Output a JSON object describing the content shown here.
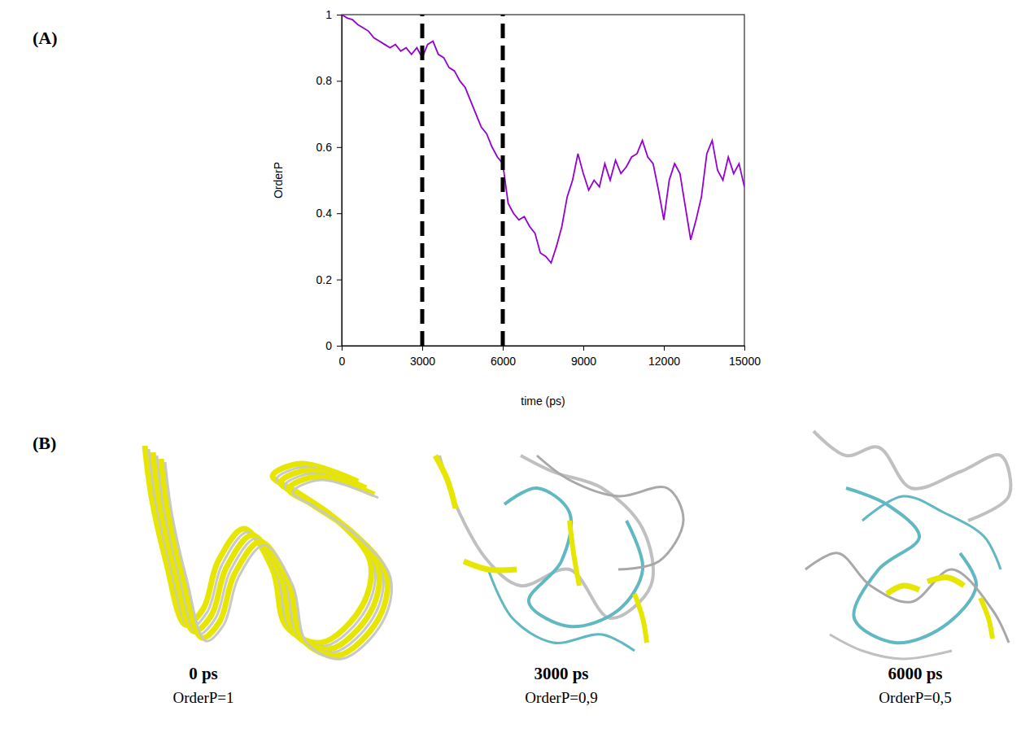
{
  "chart_data": {
    "type": "line",
    "xlabel": "time (ps)",
    "ylabel": "OrderP",
    "x": [
      0,
      200,
      400,
      600,
      800,
      1000,
      1200,
      1400,
      1600,
      1800,
      2000,
      2200,
      2400,
      2600,
      2800,
      3000,
      3200,
      3400,
      3600,
      3800,
      4000,
      4200,
      4400,
      4600,
      4800,
      5000,
      5200,
      5400,
      5600,
      5800,
      6000,
      6200,
      6400,
      6600,
      6800,
      7000,
      7200,
      7400,
      7600,
      7800,
      8000,
      8200,
      8400,
      8600,
      8800,
      9000,
      9200,
      9400,
      9600,
      9800,
      10000,
      10200,
      10400,
      10600,
      10800,
      11000,
      11200,
      11400,
      11600,
      11800,
      12000,
      12200,
      12400,
      12600,
      12800,
      13000,
      13200,
      13400,
      13600,
      13800,
      14000,
      14200,
      14400,
      14600,
      14800,
      15000
    ],
    "series": [
      {
        "color": "#9400d3",
        "values": [
          1.0,
          0.99,
          0.985,
          0.97,
          0.96,
          0.95,
          0.93,
          0.92,
          0.91,
          0.9,
          0.91,
          0.89,
          0.9,
          0.88,
          0.9,
          0.87,
          0.91,
          0.92,
          0.88,
          0.87,
          0.84,
          0.83,
          0.8,
          0.78,
          0.74,
          0.7,
          0.66,
          0.64,
          0.6,
          0.57,
          0.55,
          0.43,
          0.4,
          0.38,
          0.39,
          0.36,
          0.34,
          0.28,
          0.27,
          0.25,
          0.3,
          0.36,
          0.45,
          0.5,
          0.58,
          0.52,
          0.47,
          0.5,
          0.48,
          0.55,
          0.5,
          0.56,
          0.52,
          0.54,
          0.57,
          0.58,
          0.62,
          0.57,
          0.55,
          0.47,
          0.38,
          0.5,
          0.55,
          0.52,
          0.42,
          0.32,
          0.38,
          0.45,
          0.58,
          0.62,
          0.53,
          0.5,
          0.57,
          0.52,
          0.55,
          0.48
        ]
      }
    ],
    "xlim": [
      0,
      15000
    ],
    "xticks": [
      0,
      3000,
      6000,
      9000,
      12000,
      15000
    ],
    "ylim": [
      0,
      1
    ],
    "yticks": [
      0,
      0.2,
      0.4,
      0.6,
      0.8,
      1
    ],
    "vlines": [
      3000,
      6000
    ]
  },
  "panel_labels": [
    "(A)",
    "(B)"
  ],
  "structures": [
    {
      "time": "0 ps",
      "order": "OrderP=1"
    },
    {
      "time": "3000 ps",
      "order": "OrderP=0,9"
    },
    {
      "time": "6000 ps",
      "order": "OrderP=0,5"
    }
  ]
}
